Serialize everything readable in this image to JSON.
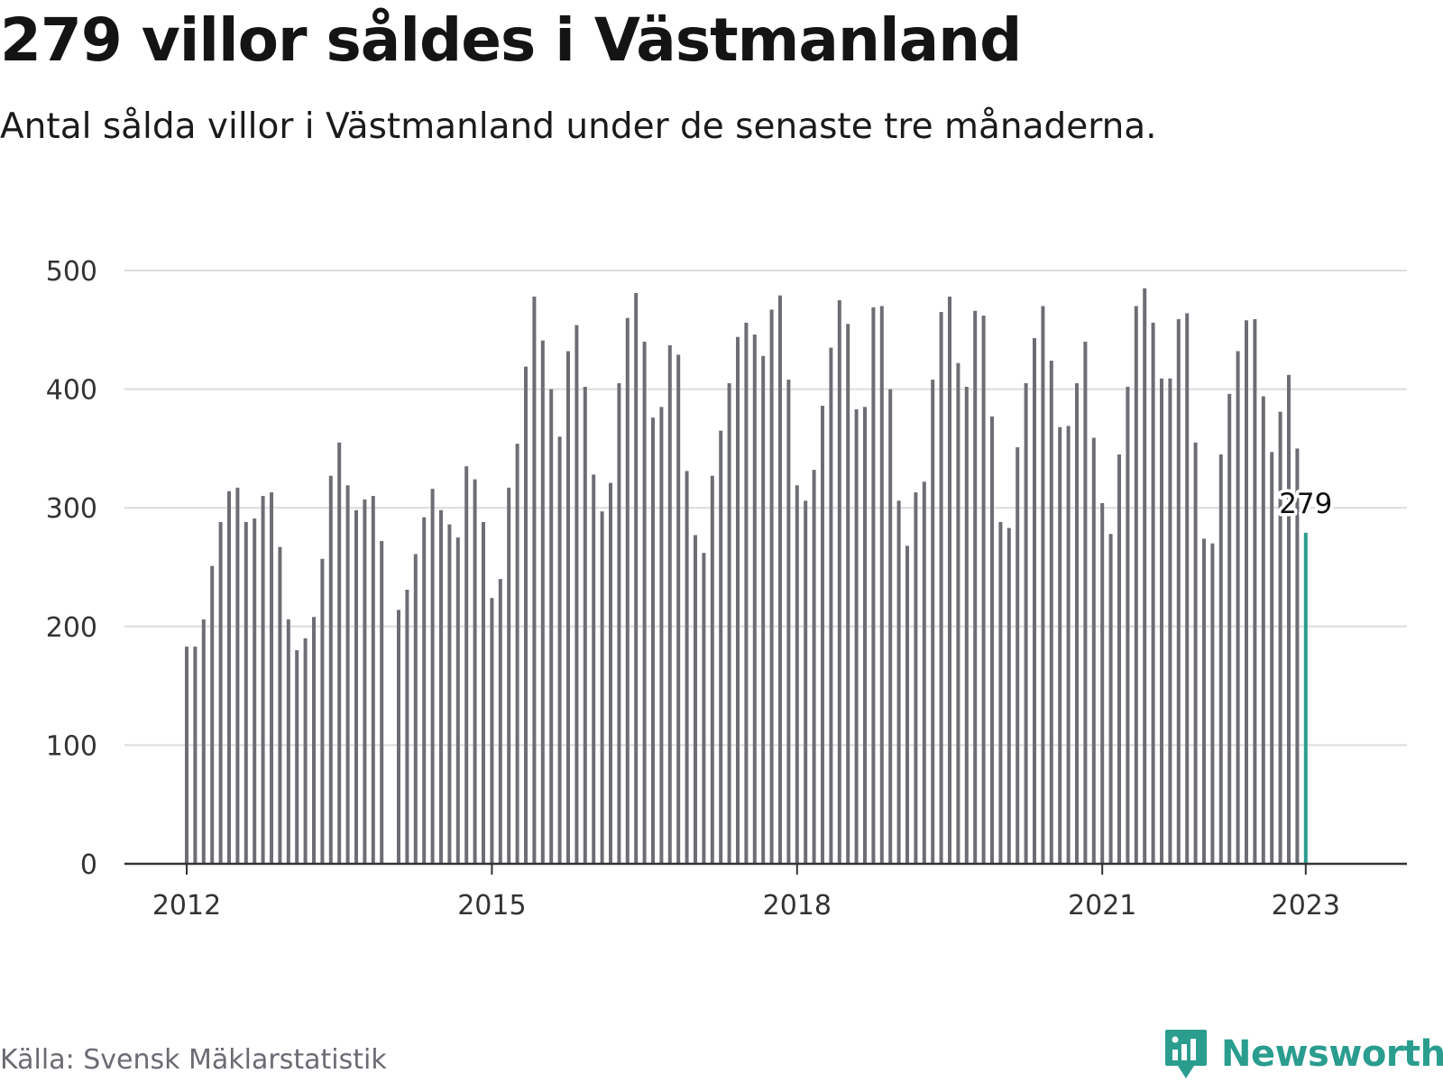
{
  "title": "279 villor såldes i Västmanland",
  "subtitle": "Antal sålda villor i Västmanland under de senaste tre månaderna.",
  "source": "Källa: Svensk Mäklarstatistik",
  "brand": {
    "name": "Newsworthy",
    "icon": "chart-speech-bubble-icon",
    "color": "#2a9d8f"
  },
  "colors": {
    "bar": "#6d6d74",
    "highlight": "#2a9d8f",
    "grid": "#dcdcdc",
    "axis": "#333333"
  },
  "chart_data": {
    "type": "bar",
    "title": "279 villor såldes i Västmanland",
    "subtitle": "Antal sålda villor i Västmanland under de senaste tre månaderna.",
    "xlabel": "",
    "ylabel": "",
    "ylim": [
      0,
      500
    ],
    "yticks": [
      0,
      100,
      200,
      300,
      400,
      500
    ],
    "grid": true,
    "x_tick_labels": [
      "2012",
      "2015",
      "2018",
      "2021",
      "2023"
    ],
    "x_start": "2012-01",
    "highlight": {
      "x": "2023-01",
      "value": 279,
      "label": "279"
    },
    "series": [
      {
        "values": [
          183,
          183,
          206,
          251,
          288,
          314,
          317,
          288,
          291,
          310,
          313,
          267,
          206,
          180,
          190,
          208,
          257,
          327,
          355,
          319,
          298,
          307,
          310,
          272,
          null,
          214,
          231,
          261,
          292,
          316,
          298,
          286,
          275,
          335,
          324,
          288,
          224,
          240,
          317,
          354,
          419,
          478,
          441,
          400,
          360,
          432,
          454,
          402,
          328,
          297,
          321,
          405,
          460,
          481,
          440,
          376,
          385,
          437,
          429,
          331,
          277,
          262,
          327,
          365,
          405,
          444,
          456,
          446,
          428,
          467,
          479,
          408,
          319,
          306,
          332,
          386,
          435,
          475,
          455,
          383,
          385,
          469,
          470,
          400,
          306,
          268,
          313,
          322,
          408,
          465,
          478,
          422,
          402,
          466,
          462,
          377,
          288,
          283,
          351,
          405,
          443,
          470,
          424,
          368,
          369,
          405,
          440,
          359,
          304,
          278,
          345,
          402,
          470,
          485,
          456,
          409,
          409,
          459,
          464,
          355,
          274,
          270,
          345,
          396,
          432,
          458,
          459,
          394,
          347,
          381,
          412,
          350,
          279
        ]
      }
    ]
  }
}
